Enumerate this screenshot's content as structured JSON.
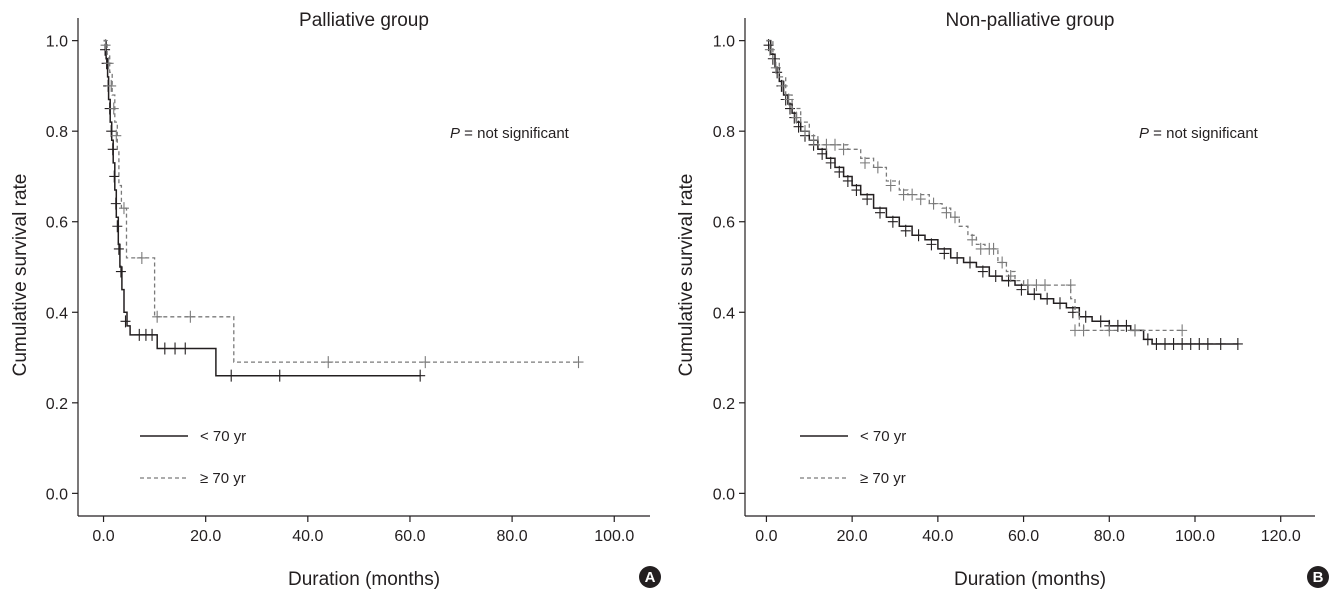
{
  "colors": {
    "under70": "#231f20",
    "over70": "#7a7a7a",
    "axis": "#231f20",
    "badge": "#231f20"
  },
  "chart_data": [
    {
      "type": "line",
      "panel": "A",
      "title": "Palliative group",
      "xlabel": "Duration (months)",
      "ylabel": "Cumulative survival rate",
      "xlim": [
        -5,
        107
      ],
      "ylim": [
        -0.05,
        1.05
      ],
      "x_ticks": [
        "0.0",
        "20.0",
        "40.0",
        "60.0",
        "80.0",
        "100.0"
      ],
      "y_ticks": [
        "0.0",
        "0.2",
        "0.4",
        "0.6",
        "0.8",
        "1.0"
      ],
      "annotation_p": "P",
      "annotation_rest": " = not significant",
      "legend_position": "lower-left",
      "series": [
        {
          "name": "< 70 yr",
          "style": "solid",
          "steps": [
            [
              0,
              1.0
            ],
            [
              0.5,
              0.96
            ],
            [
              0.8,
              0.92
            ],
            [
              1.0,
              0.87
            ],
            [
              1.3,
              0.82
            ],
            [
              1.6,
              0.78
            ],
            [
              1.9,
              0.73
            ],
            [
              2.2,
              0.67
            ],
            [
              2.5,
              0.61
            ],
            [
              2.9,
              0.55
            ],
            [
              3.2,
              0.5
            ],
            [
              3.6,
              0.45
            ],
            [
              4.0,
              0.4
            ],
            [
              4.6,
              0.37
            ],
            [
              5.2,
              0.35
            ],
            [
              10.5,
              0.32
            ],
            [
              22.0,
              0.26
            ],
            [
              62.0,
              0.26
            ]
          ],
          "censors": [
            [
              0.3,
              0.98
            ],
            [
              0.6,
              0.95
            ],
            [
              0.9,
              0.9
            ],
            [
              1.2,
              0.85
            ],
            [
              1.5,
              0.8
            ],
            [
              1.8,
              0.76
            ],
            [
              2.1,
              0.7
            ],
            [
              2.4,
              0.64
            ],
            [
              2.7,
              0.59
            ],
            [
              3.0,
              0.54
            ],
            [
              3.4,
              0.49
            ],
            [
              4.3,
              0.38
            ],
            [
              7.0,
              0.35
            ],
            [
              8.3,
              0.35
            ],
            [
              9.5,
              0.35
            ],
            [
              12.0,
              0.32
            ],
            [
              14.0,
              0.32
            ],
            [
              16.0,
              0.32
            ],
            [
              25.0,
              0.26
            ],
            [
              34.5,
              0.26
            ],
            [
              62.0,
              0.26
            ]
          ]
        },
        {
          "name": "≥ 70 yr",
          "style": "dashed",
          "steps": [
            [
              0,
              1.0
            ],
            [
              0.7,
              0.97
            ],
            [
              1.2,
              0.93
            ],
            [
              1.7,
              0.88
            ],
            [
              2.2,
              0.82
            ],
            [
              2.7,
              0.76
            ],
            [
              3.0,
              0.68
            ],
            [
              3.5,
              0.63
            ],
            [
              4.5,
              0.52
            ],
            [
              10.0,
              0.39
            ],
            [
              25.5,
              0.29
            ],
            [
              93.0,
              0.29
            ]
          ],
          "censors": [
            [
              0.4,
              0.99
            ],
            [
              1.0,
              0.95
            ],
            [
              1.5,
              0.9
            ],
            [
              2.0,
              0.85
            ],
            [
              2.5,
              0.79
            ],
            [
              4.0,
              0.63
            ],
            [
              7.5,
              0.52
            ],
            [
              10.5,
              0.39
            ],
            [
              17.0,
              0.39
            ],
            [
              44.0,
              0.29
            ],
            [
              63.0,
              0.29
            ],
            [
              93.0,
              0.29
            ]
          ]
        }
      ]
    },
    {
      "type": "line",
      "panel": "B",
      "title": "Non-palliative group",
      "xlabel": "Duration (months)",
      "ylabel": "Cumulative survival rate",
      "xlim": [
        -5,
        128
      ],
      "ylim": [
        -0.05,
        1.05
      ],
      "x_ticks": [
        "0.0",
        "20.0",
        "40.0",
        "60.0",
        "80.0",
        "100.0",
        "120.0"
      ],
      "y_ticks": [
        "0.0",
        "0.2",
        "0.4",
        "0.6",
        "0.8",
        "1.0"
      ],
      "annotation_p": "P",
      "annotation_rest": " = not significant",
      "legend_position": "lower-left",
      "series": [
        {
          "name": "< 70 yr",
          "style": "solid",
          "steps": [
            [
              0,
              1.0
            ],
            [
              1,
              0.97
            ],
            [
              2,
              0.94
            ],
            [
              3,
              0.91
            ],
            [
              4,
              0.88
            ],
            [
              5,
              0.86
            ],
            [
              6,
              0.84
            ],
            [
              7,
              0.82
            ],
            [
              8,
              0.8
            ],
            [
              10,
              0.78
            ],
            [
              12,
              0.76
            ],
            [
              14,
              0.74
            ],
            [
              16,
              0.72
            ],
            [
              18,
              0.7
            ],
            [
              20,
              0.68
            ],
            [
              22,
              0.66
            ],
            [
              25,
              0.63
            ],
            [
              28,
              0.61
            ],
            [
              31,
              0.59
            ],
            [
              34,
              0.57
            ],
            [
              37,
              0.56
            ],
            [
              40,
              0.54
            ],
            [
              43,
              0.52
            ],
            [
              46,
              0.51
            ],
            [
              49,
              0.5
            ],
            [
              52,
              0.48
            ],
            [
              55,
              0.47
            ],
            [
              58,
              0.46
            ],
            [
              61,
              0.44
            ],
            [
              64,
              0.43
            ],
            [
              67,
              0.42
            ],
            [
              70,
              0.41
            ],
            [
              73,
              0.39
            ],
            [
              76,
              0.38
            ],
            [
              80,
              0.37
            ],
            [
              85,
              0.36
            ],
            [
              88,
              0.34
            ],
            [
              90,
              0.33
            ],
            [
              110,
              0.33
            ]
          ],
          "censors": [
            [
              0.5,
              0.99
            ],
            [
              1.5,
              0.96
            ],
            [
              2.5,
              0.93
            ],
            [
              3.5,
              0.9
            ],
            [
              4.5,
              0.87
            ],
            [
              5.5,
              0.85
            ],
            [
              6.5,
              0.83
            ],
            [
              7.5,
              0.81
            ],
            [
              9,
              0.79
            ],
            [
              11,
              0.77
            ],
            [
              13,
              0.75
            ],
            [
              15,
              0.73
            ],
            [
              17,
              0.71
            ],
            [
              19,
              0.69
            ],
            [
              21,
              0.67
            ],
            [
              23.5,
              0.65
            ],
            [
              26.5,
              0.62
            ],
            [
              29.5,
              0.6
            ],
            [
              32.5,
              0.58
            ],
            [
              35.5,
              0.57
            ],
            [
              38.5,
              0.55
            ],
            [
              41.5,
              0.53
            ],
            [
              44.5,
              0.52
            ],
            [
              47.5,
              0.51
            ],
            [
              50.5,
              0.49
            ],
            [
              53.5,
              0.48
            ],
            [
              56.5,
              0.47
            ],
            [
              59.5,
              0.45
            ],
            [
              62.5,
              0.44
            ],
            [
              65.5,
              0.43
            ],
            [
              68.5,
              0.42
            ],
            [
              71.5,
              0.4
            ],
            [
              74.5,
              0.39
            ],
            [
              78,
              0.38
            ],
            [
              80,
              0.37
            ],
            [
              82,
              0.37
            ],
            [
              84,
              0.37
            ],
            [
              86,
              0.36
            ],
            [
              89,
              0.34
            ],
            [
              91,
              0.33
            ],
            [
              93,
              0.33
            ],
            [
              95,
              0.33
            ],
            [
              97,
              0.33
            ],
            [
              99,
              0.33
            ],
            [
              101,
              0.33
            ],
            [
              103,
              0.33
            ],
            [
              106,
              0.33
            ],
            [
              110,
              0.33
            ]
          ]
        },
        {
          "name": "≥ 70 yr",
          "style": "dashed",
          "steps": [
            [
              0,
              1.0
            ],
            [
              1.5,
              0.96
            ],
            [
              3,
              0.92
            ],
            [
              4.5,
              0.88
            ],
            [
              6,
              0.85
            ],
            [
              8,
              0.82
            ],
            [
              10,
              0.79
            ],
            [
              12,
              0.77
            ],
            [
              19,
              0.76
            ],
            [
              22,
              0.74
            ],
            [
              25,
              0.72
            ],
            [
              28,
              0.69
            ],
            [
              31,
              0.67
            ],
            [
              33,
              0.66
            ],
            [
              38,
              0.64
            ],
            [
              41,
              0.63
            ],
            [
              43,
              0.61
            ],
            [
              45,
              0.59
            ],
            [
              47,
              0.57
            ],
            [
              49,
              0.55
            ],
            [
              51,
              0.54
            ],
            [
              54,
              0.51
            ],
            [
              56,
              0.49
            ],
            [
              58,
              0.47
            ],
            [
              60,
              0.46
            ],
            [
              71,
              0.43
            ],
            [
              72,
              0.4
            ],
            [
              73,
              0.37
            ],
            [
              74,
              0.36
            ],
            [
              97,
              0.36
            ]
          ],
          "censors": [
            [
              0.8,
              0.98
            ],
            [
              2.2,
              0.94
            ],
            [
              3.8,
              0.9
            ],
            [
              5.2,
              0.87
            ],
            [
              7,
              0.83
            ],
            [
              9,
              0.8
            ],
            [
              11,
              0.78
            ],
            [
              14,
              0.77
            ],
            [
              16,
              0.77
            ],
            [
              18,
              0.76
            ],
            [
              23,
              0.73
            ],
            [
              26,
              0.72
            ],
            [
              29,
              0.68
            ],
            [
              32,
              0.66
            ],
            [
              34,
              0.66
            ],
            [
              36,
              0.65
            ],
            [
              39,
              0.64
            ],
            [
              42,
              0.62
            ],
            [
              44,
              0.61
            ],
            [
              48,
              0.56
            ],
            [
              50,
              0.54
            ],
            [
              52,
              0.54
            ],
            [
              53,
              0.54
            ],
            [
              55,
              0.51
            ],
            [
              57,
              0.48
            ],
            [
              61,
              0.46
            ],
            [
              63,
              0.46
            ],
            [
              65,
              0.46
            ],
            [
              71,
              0.46
            ],
            [
              72,
              0.36
            ],
            [
              74,
              0.36
            ],
            [
              80,
              0.36
            ],
            [
              86,
              0.36
            ],
            [
              97,
              0.36
            ]
          ]
        }
      ]
    }
  ]
}
